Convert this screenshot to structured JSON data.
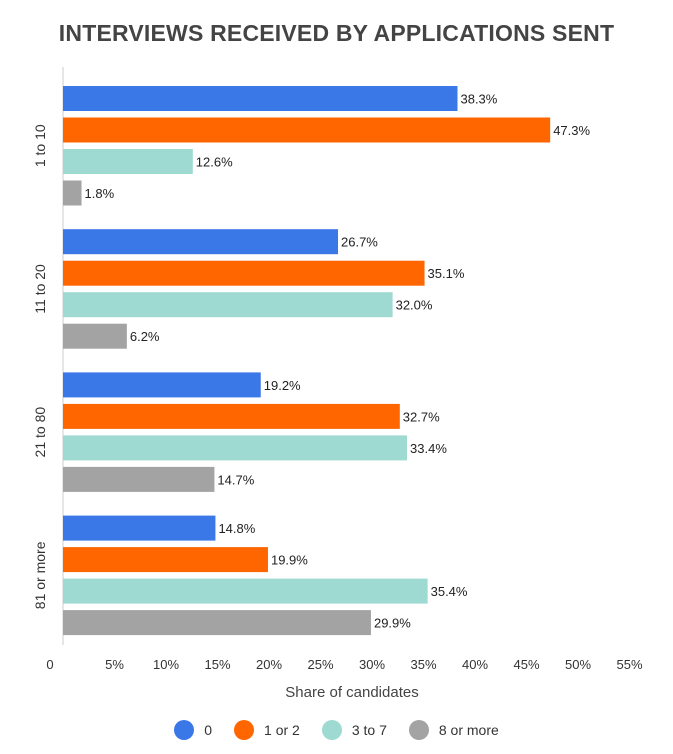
{
  "chart_data": {
    "type": "bar",
    "orientation": "horizontal",
    "title": "INTERVIEWS RECEIVED BY APPLICATIONS SENT",
    "xlabel": "Share of candidates",
    "ylabel": "",
    "xlim": [
      0,
      55
    ],
    "x_ticks": [
      "0",
      "5%",
      "10%",
      "15%",
      "20%",
      "25%",
      "30%",
      "35%",
      "40%",
      "45%",
      "50%",
      "55%"
    ],
    "categories": [
      "1 to 10",
      "11 to 20",
      "21 to 80",
      "81 or more"
    ],
    "series": [
      {
        "name": "0",
        "color": "#3b78e7",
        "values": [
          38.3,
          26.7,
          19.2,
          14.8
        ],
        "labels": [
          "38.3%",
          "26.7%",
          "19.2%",
          "14.8%"
        ]
      },
      {
        "name": "1 or 2",
        "color": "#ff6600",
        "values": [
          47.3,
          35.1,
          32.7,
          19.9
        ],
        "labels": [
          "47.3%",
          "35.1%",
          "32.7%",
          "19.9%"
        ]
      },
      {
        "name": "3 to 7",
        "color": "#9ed9d2",
        "values": [
          12.6,
          32.0,
          33.4,
          35.4
        ],
        "labels": [
          "12.6%",
          "32.0%",
          "33.4%",
          "35.4%"
        ]
      },
      {
        "name": "8 or more",
        "color": "#a3a3a3",
        "values": [
          1.8,
          6.2,
          14.7,
          29.9
        ],
        "labels": [
          "1.8%",
          "6.2%",
          "14.7%",
          "29.9%"
        ]
      }
    ],
    "grid": false,
    "legend_position": "bottom"
  }
}
